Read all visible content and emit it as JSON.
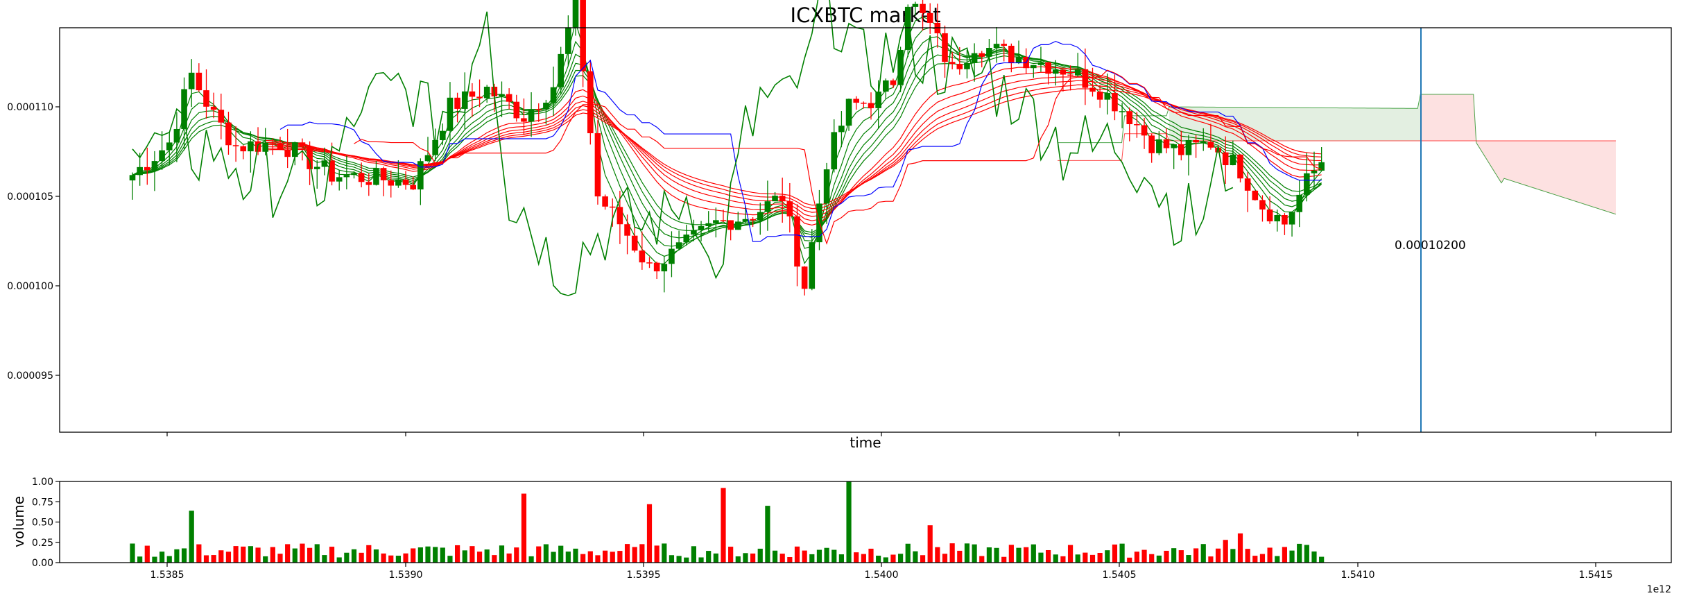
{
  "colors": {
    "up": "#008000",
    "down": "#ff0000",
    "kijun": "#0000ff",
    "marker_line": "#1f77b4",
    "cloud_bull_fill": "#e3efe1",
    "cloud_bear_fill": "#fde1e1",
    "axis": "#000000"
  },
  "chart_data": [
    {
      "type": "candlestick",
      "title": "ICXBTC market",
      "xlabel": "time",
      "ylabel": "",
      "x_tick_labels": [
        "1.5385",
        "1.5390",
        "1.5395",
        "1.5400",
        "1.5405",
        "1.5410",
        "1.5415"
      ],
      "y_tick_labels": [
        "0.000095",
        "0.000100",
        "0.000105",
        "0.000110"
      ],
      "x_offset_label": "1e12",
      "last_price_label": "0.00010200",
      "grid": false,
      "vertical_marker_label": "",
      "ylim": [
        9.18e-05,
        0.0001145
      ]
    },
    {
      "type": "bar",
      "title": "",
      "xlabel": "",
      "ylabel": "volume",
      "y_tick_labels": [
        "0.00",
        "0.25",
        "0.50",
        "0.75",
        "1.00"
      ],
      "ylim": [
        0,
        1.0
      ],
      "grid": false
    }
  ]
}
